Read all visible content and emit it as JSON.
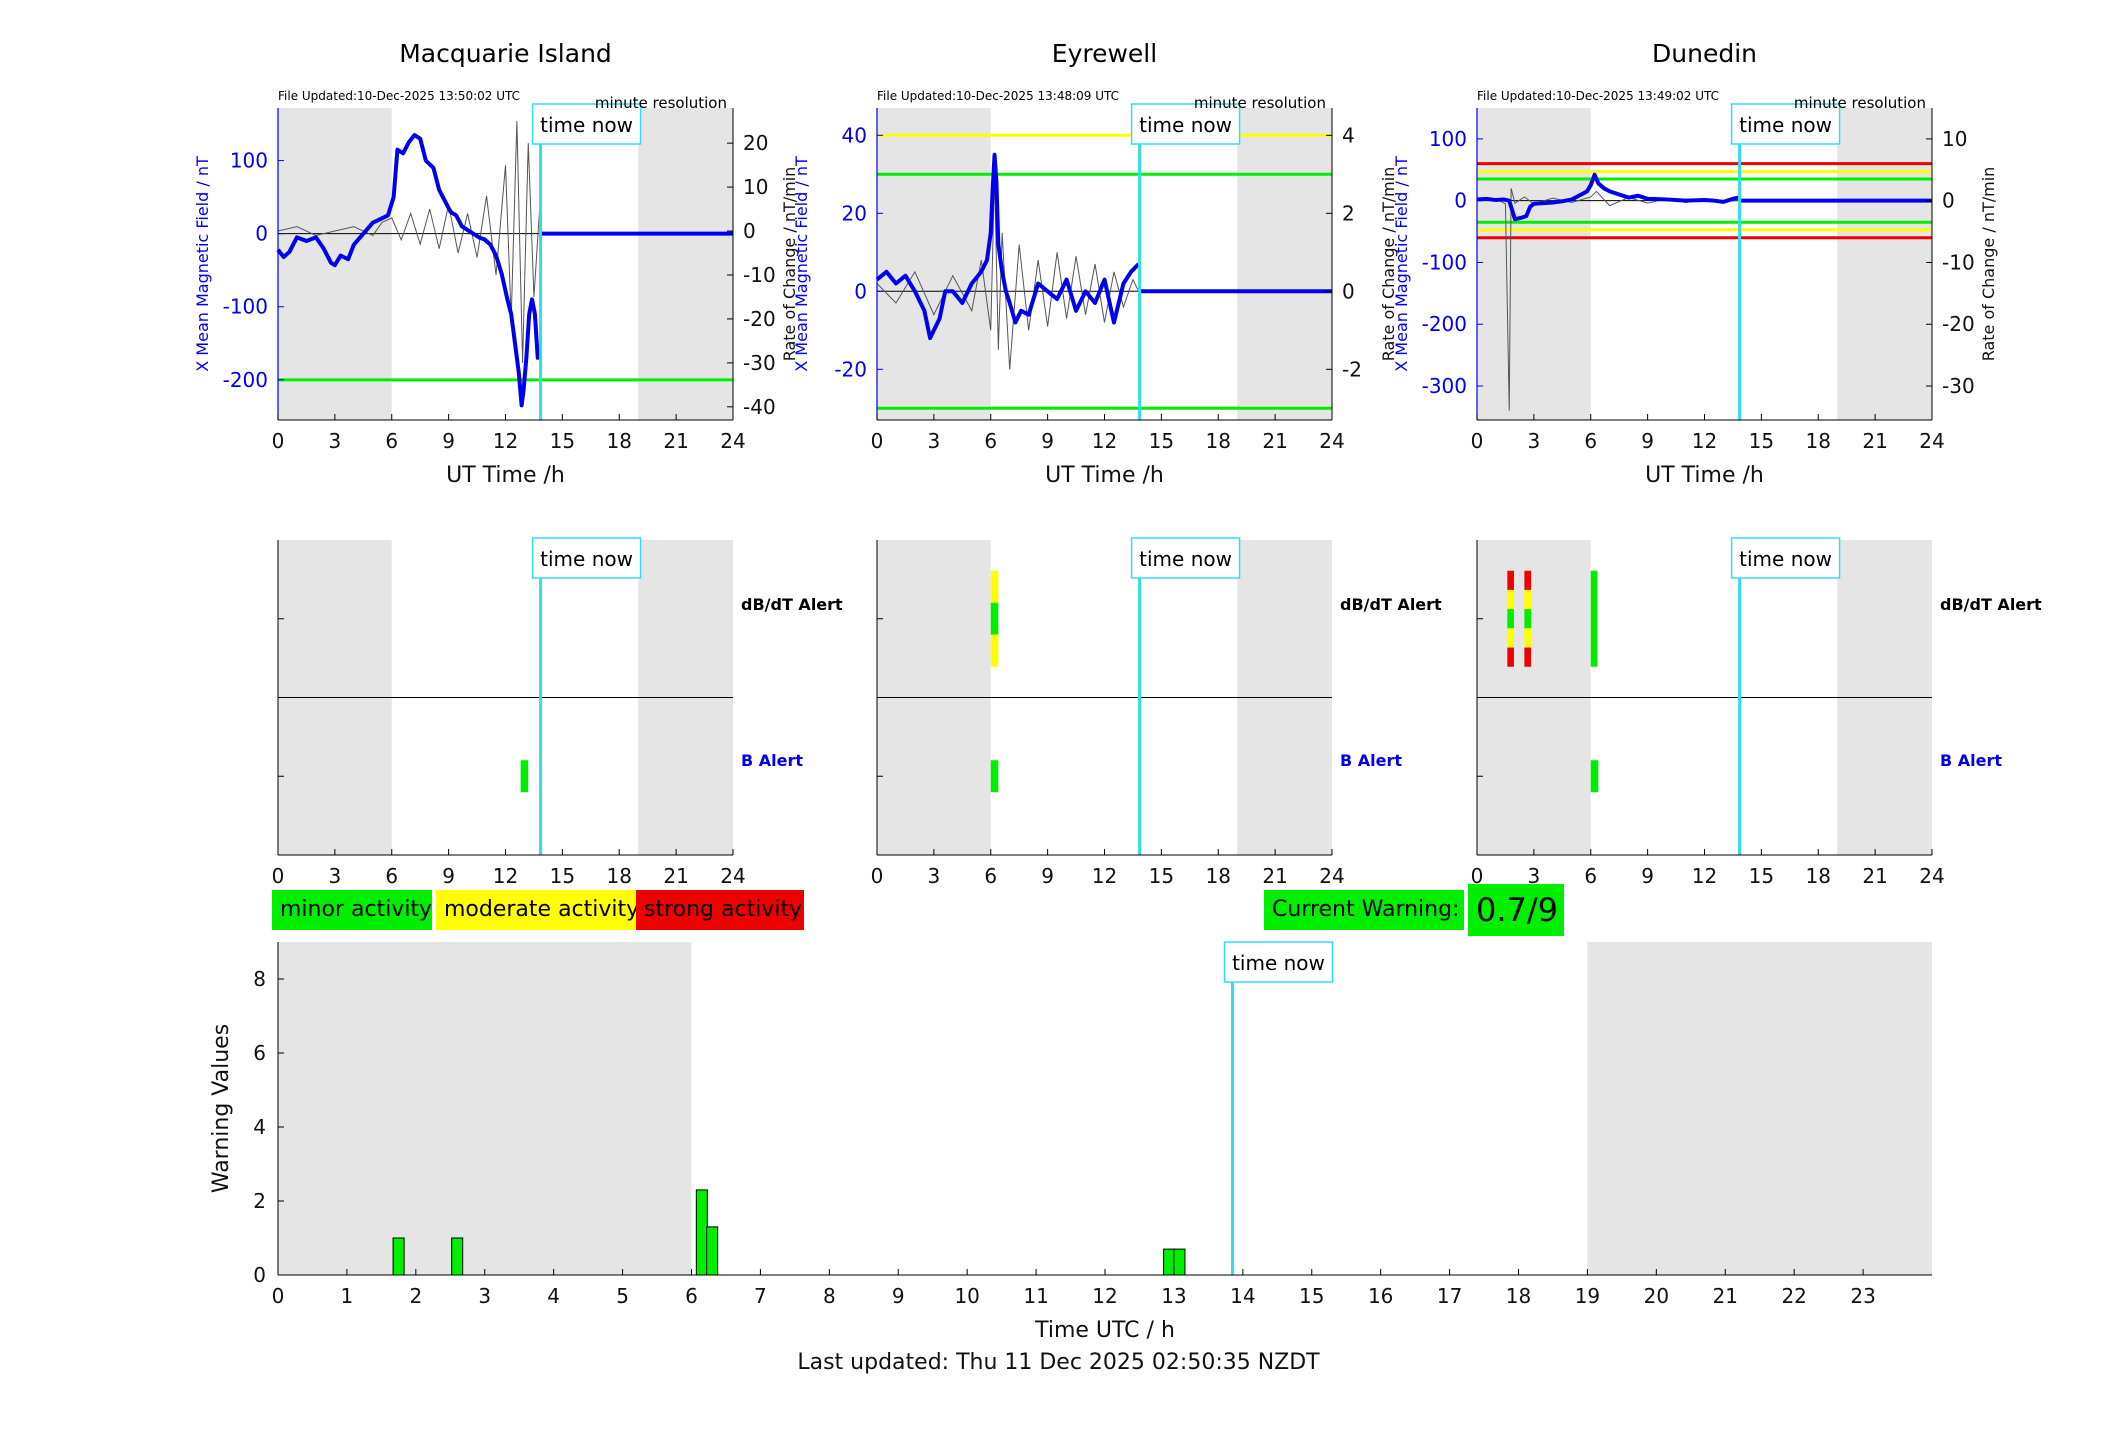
{
  "colors": {
    "field": "#0000ee",
    "rate": "#555555",
    "shade": "#e5e5e5",
    "now": "#33ddee",
    "green": "#00ee00",
    "yellow": "#ffff00",
    "red": "#ee0000"
  },
  "time_now_label": "time now",
  "station_shared": {
    "file_resolution": "minute resolution",
    "xlabel": "UT Time /h",
    "ylabel_left": "X Mean Magnetic Field / nT",
    "ylabel_right": "Rate of Change / nT/min",
    "x_ticks": [
      0,
      3,
      6,
      9,
      12,
      15,
      18,
      21,
      24
    ],
    "night_shade_h": [
      [
        0,
        6
      ],
      [
        19,
        24
      ]
    ],
    "time_now_h": 13.85
  },
  "alert_labels": {
    "dbdt": "dB/dT Alert",
    "b": "B Alert"
  },
  "legend": {
    "minor": "minor activity",
    "moderate": "moderate activity",
    "strong": "strong activity"
  },
  "current_warning": {
    "label": "Current Warning:",
    "value": "0.7/9"
  },
  "footer": "Last updated: Thu 11 Dec 2025 02:50:35 NZDT",
  "chart_data": [
    {
      "type": "line",
      "title": "Macquarie Island",
      "file_updated": "File Updated:10-Dec-2025 13:50:02 UTC",
      "ylim": [
        -255,
        172
      ],
      "yticks": [
        100,
        0,
        -100,
        -200
      ],
      "y2lim": [
        -43,
        28
      ],
      "y2ticks": [
        20,
        10,
        0,
        -10,
        -20,
        -30,
        -40
      ],
      "thresholds": [
        {
          "value": -200,
          "color": "green"
        }
      ],
      "field_series": {
        "x": [
          0,
          0.3,
          0.6,
          1,
          1.5,
          2,
          2.4,
          2.8,
          3,
          3.3,
          3.7,
          4,
          4.5,
          5,
          5.4,
          5.8,
          6.1,
          6.3,
          6.6,
          6.9,
          7.2,
          7.5,
          7.8,
          8.2,
          8.5,
          8.8,
          9.1,
          9.4,
          9.7,
          10,
          10.3,
          10.6,
          10.9,
          11.2,
          11.5,
          11.8,
          12.1,
          12.3,
          12.5,
          12.7,
          12.85,
          12.95,
          13.1,
          13.25,
          13.4,
          13.55,
          13.7,
          13.8
        ],
        "y": [
          -22,
          -32,
          -25,
          -5,
          -10,
          -5,
          -20,
          -40,
          -43,
          -30,
          -35,
          -15,
          0,
          15,
          20,
          25,
          50,
          115,
          110,
          125,
          135,
          130,
          100,
          90,
          60,
          45,
          30,
          25,
          10,
          5,
          0,
          -5,
          -8,
          -15,
          -30,
          -55,
          -90,
          -110,
          -150,
          -190,
          -235,
          -215,
          -170,
          -110,
          -90,
          -110,
          -170,
          -160
        ]
      },
      "rate_series": {
        "x": [
          0,
          1,
          2,
          3,
          4,
          5,
          5.5,
          6,
          6.5,
          7,
          7.5,
          8,
          8.5,
          9,
          9.5,
          10,
          10.5,
          11,
          11.5,
          12,
          12.3,
          12.6,
          12.9,
          13.2,
          13.5,
          13.8
        ],
        "y": [
          0,
          1,
          -1,
          0,
          1,
          -1,
          2,
          3,
          -2,
          4,
          -3,
          5,
          -4,
          6,
          -5,
          4,
          -6,
          8,
          -10,
          15,
          -20,
          25,
          -30,
          20,
          -15,
          5
        ]
      },
      "forecast_field": 0
    },
    {
      "type": "line",
      "title": "Eyrewell",
      "file_updated": "File Updated:10-Dec-2025 13:48:09 UTC",
      "ylim": [
        -33,
        47
      ],
      "yticks": [
        40,
        20,
        0,
        -20
      ],
      "y2lim": [
        -3.3,
        4.7
      ],
      "y2ticks": [
        4,
        2,
        0,
        -2
      ],
      "thresholds": [
        {
          "value": 40,
          "color": "yellow"
        },
        {
          "value": 30,
          "color": "green"
        },
        {
          "value": -30,
          "color": "green"
        }
      ],
      "field_series": {
        "x": [
          0,
          0.5,
          1,
          1.5,
          2,
          2.5,
          2.8,
          3,
          3.3,
          3.6,
          4,
          4.5,
          5,
          5.5,
          5.8,
          6,
          6.1,
          6.2,
          6.3,
          6.4,
          6.6,
          6.8,
          7,
          7.3,
          7.6,
          8,
          8.5,
          9,
          9.5,
          10,
          10.5,
          11,
          11.5,
          12,
          12.5,
          13,
          13.4,
          13.8
        ],
        "y": [
          3,
          5,
          2,
          4,
          0,
          -5,
          -12,
          -10,
          -7,
          0,
          0,
          -3,
          2,
          5,
          8,
          15,
          26,
          35,
          28,
          12,
          5,
          0,
          -3,
          -8,
          -5,
          -6,
          2,
          0,
          -2,
          3,
          -5,
          0,
          -3,
          3,
          -8,
          2,
          5,
          7
        ]
      },
      "rate_series": {
        "x": [
          0,
          1,
          2,
          3,
          4,
          5,
          5.5,
          6,
          6.2,
          6.4,
          6.6,
          7,
          7.5,
          8,
          8.5,
          9,
          9.5,
          10,
          10.5,
          11,
          11.5,
          12,
          12.5,
          13,
          13.5,
          13.8
        ],
        "y": [
          0.2,
          -0.3,
          0.5,
          -0.6,
          0.4,
          -0.5,
          0.8,
          -1,
          3,
          -1.5,
          1.5,
          -2,
          1.2,
          -1,
          0.8,
          -0.9,
          1,
          -0.7,
          0.9,
          -0.6,
          0.7,
          -0.8,
          0.5,
          -0.4,
          0.3,
          0
        ]
      },
      "forecast_field": 0
    },
    {
      "type": "line",
      "title": "Dunedin",
      "file_updated": "File Updated:10-Dec-2025 13:49:02 UTC",
      "ylim": [
        -355,
        150
      ],
      "yticks": [
        100,
        0,
        -100,
        -200,
        -300
      ],
      "y2lim": [
        -35.5,
        15
      ],
      "y2ticks": [
        10,
        0,
        -10,
        -20,
        -30
      ],
      "thresholds": [
        {
          "value": 60,
          "color": "red"
        },
        {
          "value": 47,
          "color": "yellow"
        },
        {
          "value": 35,
          "color": "green"
        },
        {
          "value": -35,
          "color": "green"
        },
        {
          "value": -47,
          "color": "yellow"
        },
        {
          "value": -60,
          "color": "red"
        }
      ],
      "field_series": {
        "x": [
          0,
          0.5,
          1,
          1.4,
          1.7,
          2,
          2.3,
          2.6,
          2.8,
          3,
          3.5,
          4,
          4.5,
          5,
          5.5,
          5.8,
          6,
          6.2,
          6.4,
          6.7,
          7,
          7.5,
          8,
          8.5,
          9,
          10,
          11,
          12,
          12.5,
          13,
          13.5,
          13.8
        ],
        "y": [
          2,
          3,
          1,
          2,
          0,
          -30,
          -28,
          -25,
          -10,
          -5,
          -4,
          -3,
          -1,
          2,
          10,
          15,
          25,
          42,
          28,
          20,
          15,
          10,
          5,
          8,
          3,
          2,
          0,
          1,
          0,
          -2,
          3,
          5
        ]
      },
      "rate_series": {
        "x": [
          0,
          1,
          1.5,
          1.7,
          1.8,
          2,
          2.5,
          3,
          4,
          5,
          6,
          6.3,
          7,
          8,
          9,
          10,
          11,
          12,
          13,
          13.8
        ],
        "y": [
          0,
          0.3,
          -0.5,
          -34,
          2,
          -0.4,
          0.6,
          -0.5,
          0.4,
          -0.3,
          0.6,
          1.5,
          -0.8,
          0.5,
          -0.4,
          0.3,
          -0.3,
          0.2,
          -0.1,
          0
        ]
      },
      "forecast_field": 0
    },
    {
      "type": "alert_timeline",
      "station": "Macquarie Island",
      "dbdt_alerts": [],
      "b_alerts": [
        {
          "start_h": 12.8,
          "end_h": 13.2,
          "levels": [
            "green"
          ]
        }
      ]
    },
    {
      "type": "alert_timeline",
      "station": "Eyrewell",
      "dbdt_alerts": [
        {
          "start_h": 6.0,
          "end_h": 6.4,
          "levels": [
            "yellow",
            "green",
            "yellow"
          ]
        }
      ],
      "b_alerts": [
        {
          "start_h": 6.0,
          "end_h": 6.4,
          "levels": [
            "green"
          ]
        }
      ]
    },
    {
      "type": "alert_timeline",
      "station": "Dunedin",
      "dbdt_alerts": [
        {
          "start_h": 1.6,
          "end_h": 1.95,
          "levels": [
            "red",
            "yellow",
            "green",
            "yellow",
            "red"
          ]
        },
        {
          "start_h": 2.5,
          "end_h": 2.85,
          "levels": [
            "red",
            "yellow",
            "green",
            "yellow",
            "red"
          ]
        },
        {
          "start_h": 6.0,
          "end_h": 6.35,
          "levels": [
            "green"
          ]
        }
      ],
      "b_alerts": [
        {
          "start_h": 6.0,
          "end_h": 6.4,
          "levels": [
            "green"
          ]
        }
      ]
    },
    {
      "type": "bar",
      "title": "",
      "xlabel": "Time UTC / h",
      "ylabel": "Warning Values",
      "xlim": [
        0,
        24
      ],
      "ylim": [
        0,
        9
      ],
      "yticks": [
        0,
        2,
        4,
        6,
        8
      ],
      "x_ticks": [
        0,
        1,
        2,
        3,
        4,
        5,
        6,
        7,
        8,
        9,
        10,
        11,
        12,
        13,
        14,
        15,
        16,
        17,
        18,
        19,
        20,
        21,
        22,
        23
      ],
      "night_shade_h": [
        [
          0,
          6
        ],
        [
          19,
          24
        ]
      ],
      "time_now_h": 13.85,
      "bar_width_h": 0.16,
      "x": [
        1.75,
        2.6,
        6.15,
        6.3,
        12.93,
        13.08
      ],
      "values": [
        1,
        1,
        2.3,
        1.3,
        0.7,
        0.7
      ]
    }
  ]
}
